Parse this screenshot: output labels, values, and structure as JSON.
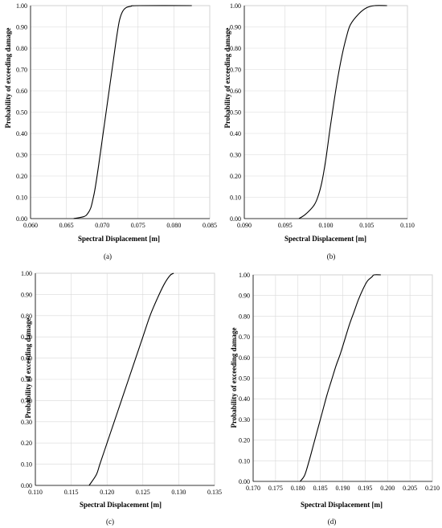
{
  "chart_data": [
    {
      "type": "line",
      "panel_label": "(a)",
      "xlabel": "Spectral Displacement [m]",
      "ylabel": "Probability of exceeding damage",
      "xlim": [
        0.06,
        0.085
      ],
      "ylim": [
        0,
        1
      ],
      "x_ticks": [
        "0.060",
        "0.065",
        "0.070",
        "0.075",
        "0.080",
        "0.085"
      ],
      "y_ticks": [
        "0.00",
        "0.10",
        "0.20",
        "0.30",
        "0.40",
        "0.50",
        "0.60",
        "0.70",
        "0.80",
        "0.90",
        "1.00"
      ],
      "grid": true,
      "series": [
        {
          "x": [
            0.066,
            0.0675,
            0.068,
            0.0684,
            0.0687,
            0.069,
            0.0695,
            0.07,
            0.0705,
            0.071,
            0.0715,
            0.072,
            0.0724,
            0.0728,
            0.0733,
            0.074,
            0.075,
            0.0825
          ],
          "y": [
            0.0,
            0.01,
            0.025,
            0.05,
            0.09,
            0.14,
            0.25,
            0.37,
            0.49,
            0.61,
            0.73,
            0.85,
            0.93,
            0.97,
            0.99,
            0.997,
            1.0,
            1.0
          ]
        }
      ],
      "color": "#000000"
    },
    {
      "type": "line",
      "panel_label": "(b)",
      "xlabel": "Spectral Displacement [m]",
      "ylabel": "Probability of exceeding damage",
      "xlim": [
        0.09,
        0.11
      ],
      "ylim": [
        0,
        1
      ],
      "x_ticks": [
        "0.090",
        "0.095",
        "0.100",
        "0.105",
        "0.110"
      ],
      "y_ticks": [
        "0.00",
        "0.10",
        "0.20",
        "0.30",
        "0.40",
        "0.50",
        "0.60",
        "0.70",
        "0.80",
        "0.90",
        "1.00"
      ],
      "grid": true,
      "series": [
        {
          "x": [
            0.0967,
            0.0975,
            0.0985,
            0.099,
            0.0995,
            0.1,
            0.1005,
            0.101,
            0.1015,
            0.102,
            0.1025,
            0.103,
            0.104,
            0.105,
            0.106,
            0.1075
          ],
          "y": [
            0.0,
            0.02,
            0.06,
            0.1,
            0.17,
            0.28,
            0.42,
            0.55,
            0.67,
            0.77,
            0.85,
            0.91,
            0.96,
            0.99,
            1.0,
            1.0
          ]
        }
      ],
      "color": "#000000"
    },
    {
      "type": "line",
      "panel_label": "(c)",
      "xlabel": "Spectral Displacement [m]",
      "ylabel": "Probability of exceeding damage",
      "xlim": [
        0.11,
        0.135
      ],
      "ylim": [
        0,
        1
      ],
      "x_ticks": [
        "0.110",
        "0.115",
        "0.120",
        "0.125",
        "0.130",
        "0.135"
      ],
      "y_ticks": [
        "0.00",
        "0.10",
        "0.20",
        "0.30",
        "0.40",
        "0.50",
        "0.60",
        "0.70",
        "0.80",
        "0.90",
        "1.00"
      ],
      "grid": true,
      "series": [
        {
          "x": [
            0.1175,
            0.1185,
            0.119,
            0.12,
            0.121,
            0.122,
            0.123,
            0.124,
            0.125,
            0.126,
            0.127,
            0.128,
            0.1288,
            0.1293
          ],
          "y": [
            0.0,
            0.05,
            0.1,
            0.2,
            0.3,
            0.4,
            0.5,
            0.6,
            0.7,
            0.8,
            0.88,
            0.95,
            0.99,
            1.0
          ]
        }
      ],
      "color": "#000000"
    },
    {
      "type": "line",
      "panel_label": "(d)",
      "xlabel": "Spectral Displacement [m]",
      "ylabel": "Probability of exceeding damage",
      "xlim": [
        0.17,
        0.21
      ],
      "ylim": [
        0,
        1
      ],
      "x_ticks": [
        "0.170",
        "0.175",
        "0.180",
        "0.185",
        "0.190",
        "0.195",
        "0.200",
        "0.205",
        "0.210"
      ],
      "y_ticks": [
        "0.00",
        "0.10",
        "0.20",
        "0.30",
        "0.40",
        "0.50",
        "0.60",
        "0.70",
        "0.80",
        "0.90",
        "1.00"
      ],
      "grid": true,
      "series": [
        {
          "x": [
            0.1805,
            0.1815,
            0.1825,
            0.1835,
            0.1845,
            0.1855,
            0.1865,
            0.1875,
            0.1885,
            0.1895,
            0.1905,
            0.1915,
            0.1925,
            0.1935,
            0.1945,
            0.1955,
            0.1965,
            0.197,
            0.1985
          ],
          "y": [
            0.0,
            0.03,
            0.1,
            0.18,
            0.26,
            0.34,
            0.42,
            0.49,
            0.56,
            0.62,
            0.69,
            0.76,
            0.82,
            0.88,
            0.93,
            0.97,
            0.99,
            1.0,
            1.0
          ]
        }
      ],
      "color": "#000000"
    }
  ]
}
